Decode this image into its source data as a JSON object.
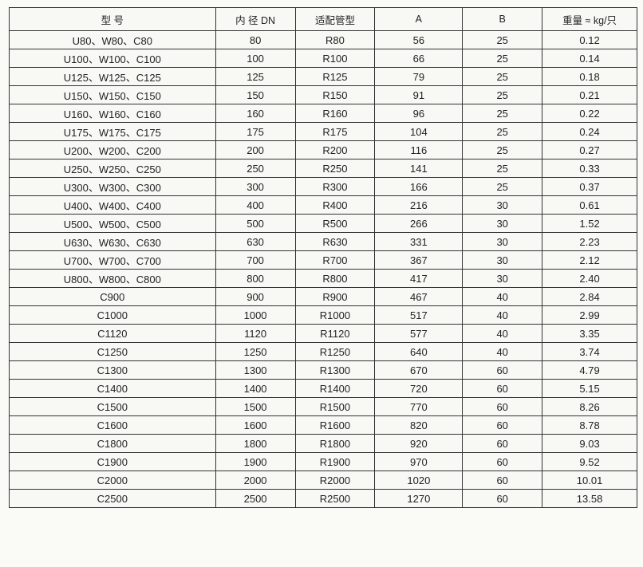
{
  "headers": [
    "型 号",
    "内 径 DN",
    "适配管型",
    "A",
    "B",
    "重量 ≈ kg/只"
  ],
  "rows": [
    [
      "U80、W80、C80",
      "80",
      "R80",
      "56",
      "25",
      "0.12"
    ],
    [
      "U100、W100、C100",
      "100",
      "R100",
      "66",
      "25",
      "0.14"
    ],
    [
      "U125、W125、C125",
      "125",
      "R125",
      "79",
      "25",
      "0.18"
    ],
    [
      "U150、W150、C150",
      "150",
      "R150",
      "91",
      "25",
      "0.21"
    ],
    [
      "U160、W160、C160",
      "160",
      "R160",
      "96",
      "25",
      "0.22"
    ],
    [
      "U175、W175、C175",
      "175",
      "R175",
      "104",
      "25",
      "0.24"
    ],
    [
      "U200、W200、C200",
      "200",
      "R200",
      "116",
      "25",
      "0.27"
    ],
    [
      "U250、W250、C250",
      "250",
      "R250",
      "141",
      "25",
      "0.33"
    ],
    [
      "U300、W300、C300",
      "300",
      "R300",
      "166",
      "25",
      "0.37"
    ],
    [
      "U400、W400、C400",
      "400",
      "R400",
      "216",
      "30",
      "0.61"
    ],
    [
      "U500、W500、C500",
      "500",
      "R500",
      "266",
      "30",
      "1.52"
    ],
    [
      "U630、W630、C630",
      "630",
      "R630",
      "331",
      "30",
      "2.23"
    ],
    [
      "U700、W700、C700",
      "700",
      "R700",
      "367",
      "30",
      "2.12"
    ],
    [
      "U800、W800、C800",
      "800",
      "R800",
      "417",
      "30",
      "2.40"
    ],
    [
      "C900",
      "900",
      "R900",
      "467",
      "40",
      "2.84"
    ],
    [
      "C1000",
      "1000",
      "R1000",
      "517",
      "40",
      "2.99"
    ],
    [
      "C1120",
      "1120",
      "R1120",
      "577",
      "40",
      "3.35"
    ],
    [
      "C1250",
      "1250",
      "R1250",
      "640",
      "40",
      "3.74"
    ],
    [
      "C1300",
      "1300",
      "R1300",
      "670",
      "60",
      "4.79"
    ],
    [
      "C1400",
      "1400",
      "R1400",
      "720",
      "60",
      "5.15"
    ],
    [
      "C1500",
      "1500",
      "R1500",
      "770",
      "60",
      "8.26"
    ],
    [
      "C1600",
      "1600",
      "R1600",
      "820",
      "60",
      "8.78"
    ],
    [
      "C1800",
      "1800",
      "R1800",
      "920",
      "60",
      "9.03"
    ],
    [
      "C1900",
      "1900",
      "R1900",
      "970",
      "60",
      "9.52"
    ],
    [
      "C2000",
      "2000",
      "R2000",
      "1020",
      "60",
      "10.01"
    ],
    [
      "C2500",
      "2500",
      "R2500",
      "1270",
      "60",
      "13.58"
    ]
  ]
}
